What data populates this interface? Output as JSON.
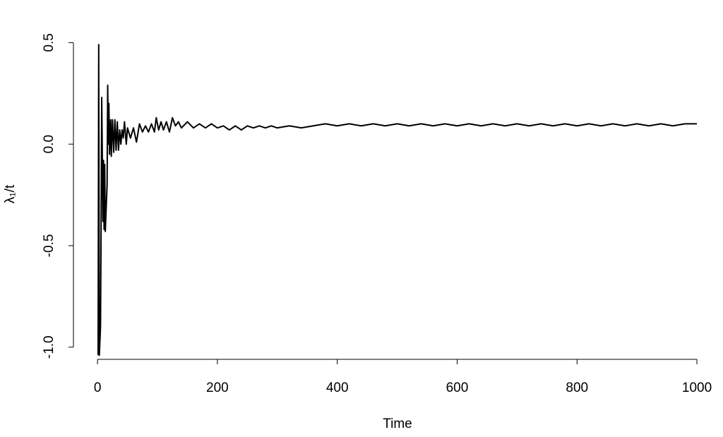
{
  "chart_data": {
    "type": "line",
    "x_label": "Time",
    "y_label": "λ₁/t",
    "color": "#000000",
    "x": [
      1,
      2,
      3,
      5,
      6,
      7,
      8,
      9,
      10,
      11,
      12,
      13,
      14,
      16,
      17,
      18,
      19,
      20,
      22,
      23,
      25,
      27,
      29,
      31,
      33,
      35,
      37,
      39,
      41,
      43,
      45,
      48,
      50,
      55,
      60,
      65,
      70,
      75,
      80,
      85,
      90,
      95,
      98,
      102,
      106,
      110,
      115,
      120,
      125,
      130,
      135,
      140,
      150,
      160,
      170,
      180,
      190,
      200,
      210,
      220,
      230,
      240,
      250,
      260,
      270,
      280,
      290,
      300,
      320,
      340,
      360,
      380,
      400,
      420,
      440,
      460,
      480,
      500,
      520,
      540,
      560,
      580,
      600,
      620,
      640,
      660,
      680,
      700,
      720,
      740,
      760,
      780,
      800,
      820,
      840,
      860,
      880,
      900,
      920,
      940,
      960,
      980,
      1000
    ],
    "values": [
      -1.04,
      0.49,
      -1.04,
      -0.9,
      -0.4,
      0.23,
      -0.05,
      -0.38,
      -0.08,
      -0.42,
      -0.1,
      -0.43,
      -0.35,
      -0.2,
      0.29,
      0.0,
      0.2,
      -0.05,
      0.12,
      -0.06,
      0.12,
      -0.04,
      0.12,
      -0.03,
      0.11,
      -0.03,
      0.07,
      0.0,
      0.07,
      0.03,
      0.11,
      0.0,
      0.08,
      0.03,
      0.08,
      0.01,
      0.1,
      0.06,
      0.09,
      0.06,
      0.1,
      0.06,
      0.13,
      0.07,
      0.11,
      0.07,
      0.11,
      0.06,
      0.13,
      0.09,
      0.11,
      0.08,
      0.11,
      0.08,
      0.1,
      0.08,
      0.1,
      0.08,
      0.09,
      0.07,
      0.09,
      0.07,
      0.09,
      0.08,
      0.09,
      0.08,
      0.09,
      0.08,
      0.09,
      0.08,
      0.09,
      0.1,
      0.09,
      0.1,
      0.09,
      0.1,
      0.09,
      0.1,
      0.09,
      0.1,
      0.09,
      0.1,
      0.09,
      0.1,
      0.09,
      0.1,
      0.09,
      0.1,
      0.09,
      0.1,
      0.09,
      0.1,
      0.09,
      0.1,
      0.09,
      0.1,
      0.09,
      0.1,
      0.09,
      0.1,
      0.09,
      0.1,
      0.1
    ],
    "xlim": [
      -39,
      1040
    ],
    "ylim": [
      -1.06,
      0.55
    ],
    "xticks": [
      0,
      200,
      400,
      600,
      800,
      1000
    ],
    "yticks": [
      {
        "value": -1,
        "label": "-1.0"
      },
      -0.5,
      {
        "value": 0,
        "label": "0.0"
      },
      0.5
    ]
  }
}
